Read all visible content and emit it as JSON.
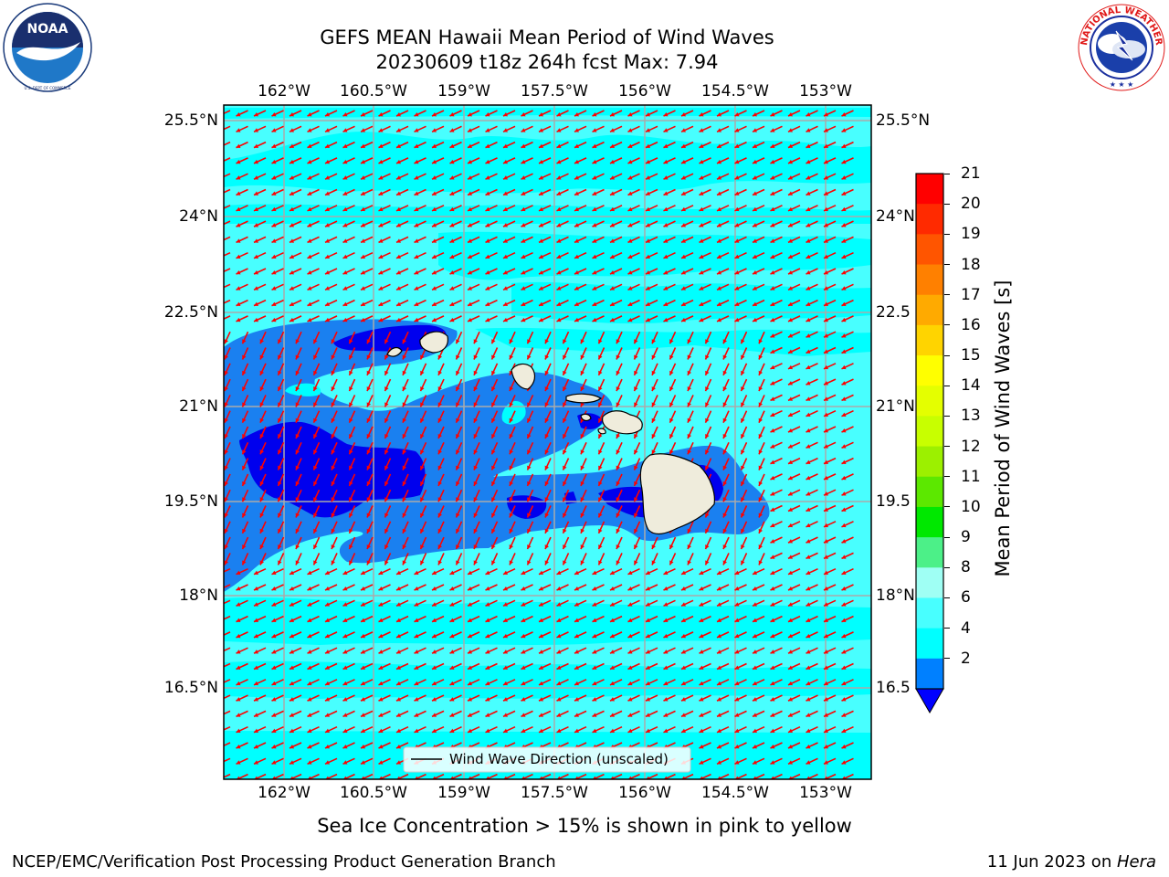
{
  "title": {
    "line1": "GEFS MEAN Hawaii Mean Period of Wind Waves",
    "line2": "20230609 t18z 264h fcst   Max: 7.94"
  },
  "map": {
    "lon_labels": [
      "162°W",
      "160.5°W",
      "159°W",
      "157.5°W",
      "156°W",
      "154.5°W",
      "153°W"
    ],
    "lat_labels": [
      "25.5°N",
      "24°N",
      "22.5°N",
      "21°N",
      "19.5°N",
      "18°N",
      "16.5°N"
    ],
    "lat_labels_right": [
      "25.5°N",
      "24°N",
      "22.5",
      "21°N",
      "19.5",
      "18°N",
      "16.5"
    ],
    "legend_label": "Wind Wave Direction (unscaled)",
    "ocean_color": "#48ffff",
    "land_color": "#efecdc",
    "arrow_color": "#ff0000"
  },
  "colorbar": {
    "label": "Mean Period of Wind Waves [s]",
    "ticks": [
      "21",
      "20",
      "19",
      "18",
      "17",
      "16",
      "15",
      "14",
      "13",
      "12",
      "11",
      "10",
      "9",
      "8",
      "6",
      "4",
      "2"
    ],
    "colors": [
      "#ff0000",
      "#ff2a00",
      "#ff5500",
      "#ff8000",
      "#ffaa00",
      "#ffd400",
      "#ffff00",
      "#e4ff00",
      "#c8ff00",
      "#9cf000",
      "#5ce800",
      "#00e800",
      "#4cf088",
      "#9ffff4",
      "#48ffff",
      "#00ffff",
      "#0080ff"
    ],
    "extend_color": "#0000ff"
  },
  "annotations": {
    "sea_ice_note": "Sea Ice Concentration > 15% is shown in pink to yellow",
    "footer_left": "NCEP/EMC/Verification Post Processing Product Generation Branch",
    "footer_right_date": "11 Jun 2023 on ",
    "footer_right_host": "Hera"
  },
  "logos": {
    "noaa": "NOAA",
    "noaa_ring": "NATIONAL OCEANIC AND ATMOSPHERIC ADMINISTRATION · U.S. DEPARTMENT OF COMMERCE",
    "nws_ring": "NATIONAL WEATHER SERVICE"
  }
}
